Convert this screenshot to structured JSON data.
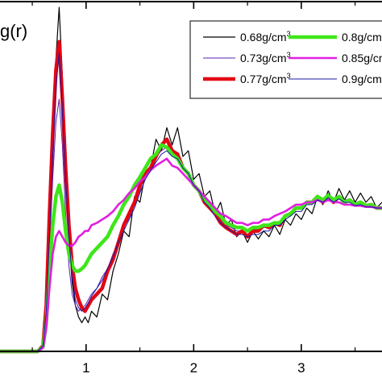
{
  "chart_data": {
    "type": "line",
    "ylabel": "g(r)",
    "xlabel": "",
    "title": "",
    "xlim": [
      0.2,
      3.75
    ],
    "ylim": [
      0,
      3.05
    ],
    "xticks": [
      {
        "value": 1,
        "label": "1"
      },
      {
        "value": 2,
        "label": "2"
      },
      {
        "value": 3,
        "label": "3"
      }
    ],
    "grid": false,
    "legend_position": "top-right",
    "series": [
      {
        "name": "0.68g/cm",
        "superscript": "3",
        "color": "#000000",
        "width": 1.2,
        "x": [
          0.2,
          0.55,
          0.6,
          0.63,
          0.66,
          0.69,
          0.72,
          0.75,
          0.78,
          0.81,
          0.84,
          0.87,
          0.9,
          0.93,
          0.96,
          0.99,
          1.02,
          1.05,
          1.1,
          1.15,
          1.2,
          1.25,
          1.3,
          1.35,
          1.4,
          1.45,
          1.5,
          1.55,
          1.6,
          1.65,
          1.7,
          1.75,
          1.8,
          1.85,
          1.9,
          1.95,
          2.0,
          2.05,
          2.1,
          2.15,
          2.2,
          2.25,
          2.3,
          2.35,
          2.4,
          2.45,
          2.5,
          2.55,
          2.6,
          2.65,
          2.7,
          2.75,
          2.8,
          2.85,
          2.9,
          2.95,
          3.0,
          3.05,
          3.1,
          3.15,
          3.2,
          3.25,
          3.3,
          3.35,
          3.4,
          3.45,
          3.5,
          3.55,
          3.6,
          3.65,
          3.7,
          3.75
        ],
        "y": [
          0.0,
          0.0,
          0.05,
          0.35,
          1.1,
          1.9,
          2.55,
          3.0,
          2.4,
          1.6,
          1.0,
          0.6,
          0.4,
          0.3,
          0.25,
          0.3,
          0.25,
          0.35,
          0.3,
          0.5,
          0.45,
          0.7,
          0.85,
          1.05,
          1.0,
          1.35,
          1.3,
          1.55,
          1.6,
          1.85,
          1.75,
          1.95,
          1.8,
          1.95,
          1.7,
          1.75,
          1.5,
          1.55,
          1.35,
          1.4,
          1.2,
          1.3,
          1.1,
          1.15,
          1.0,
          1.05,
          0.95,
          1.05,
          0.98,
          1.05,
          1.0,
          1.1,
          1.02,
          1.15,
          1.1,
          1.2,
          1.15,
          1.25,
          1.2,
          1.35,
          1.28,
          1.4,
          1.3,
          1.42,
          1.32,
          1.4,
          1.3,
          1.38,
          1.3,
          1.35,
          1.25,
          1.3
        ]
      },
      {
        "name": "0.73g/cm",
        "superscript": "3",
        "color": "#5a1fb0",
        "width": 1.0,
        "x": [
          0.2,
          0.55,
          0.6,
          0.63,
          0.66,
          0.69,
          0.72,
          0.75,
          0.78,
          0.81,
          0.84,
          0.87,
          0.9,
          0.93,
          0.96,
          0.99,
          1.02,
          1.05,
          1.1,
          1.15,
          1.2,
          1.25,
          1.3,
          1.35,
          1.4,
          1.45,
          1.5,
          1.55,
          1.6,
          1.65,
          1.7,
          1.75,
          1.8,
          1.85,
          1.9,
          1.95,
          2.0,
          2.05,
          2.1,
          2.15,
          2.2,
          2.25,
          2.3,
          2.35,
          2.4,
          2.45,
          2.5,
          2.55,
          2.6,
          2.65,
          2.7,
          2.75,
          2.8,
          2.85,
          2.9,
          2.95,
          3.0,
          3.05,
          3.1,
          3.15,
          3.2,
          3.25,
          3.3,
          3.35,
          3.4,
          3.45,
          3.5,
          3.55,
          3.6,
          3.65,
          3.7,
          3.75
        ],
        "y": [
          0.0,
          0.0,
          0.05,
          0.3,
          0.9,
          1.5,
          2.0,
          2.2,
          1.8,
          1.2,
          0.75,
          0.5,
          0.4,
          0.35,
          0.38,
          0.4,
          0.45,
          0.5,
          0.55,
          0.65,
          0.72,
          0.85,
          0.95,
          1.1,
          1.15,
          1.3,
          1.4,
          1.55,
          1.6,
          1.7,
          1.75,
          1.78,
          1.72,
          1.7,
          1.6,
          1.55,
          1.45,
          1.4,
          1.3,
          1.25,
          1.2,
          1.15,
          1.1,
          1.08,
          1.05,
          1.05,
          1.02,
          1.05,
          1.05,
          1.08,
          1.08,
          1.12,
          1.12,
          1.18,
          1.2,
          1.25,
          1.25,
          1.3,
          1.3,
          1.33,
          1.32,
          1.35,
          1.33,
          1.35,
          1.32,
          1.33,
          1.3,
          1.3,
          1.28,
          1.28,
          1.26,
          1.25
        ]
      },
      {
        "name": "0.77g/cm",
        "superscript": "3",
        "color": "#e30613",
        "width": 4.5,
        "x": [
          0.2,
          0.55,
          0.6,
          0.63,
          0.66,
          0.69,
          0.72,
          0.75,
          0.78,
          0.81,
          0.84,
          0.87,
          0.9,
          0.93,
          0.96,
          0.99,
          1.02,
          1.05,
          1.1,
          1.15,
          1.2,
          1.25,
          1.3,
          1.35,
          1.4,
          1.45,
          1.5,
          1.55,
          1.6,
          1.65,
          1.7,
          1.75,
          1.8,
          1.85,
          1.9,
          1.95,
          2.0,
          2.05,
          2.1,
          2.15,
          2.2,
          2.25,
          2.3,
          2.35,
          2.4,
          2.45,
          2.5,
          2.55,
          2.6,
          2.65,
          2.7,
          2.75,
          2.8,
          2.85,
          2.9,
          2.95,
          3.0,
          3.05,
          3.1,
          3.15,
          3.2,
          3.25,
          3.3,
          3.35,
          3.4,
          3.45,
          3.5,
          3.55,
          3.6,
          3.65,
          3.7,
          3.75
        ],
        "y": [
          0.0,
          0.0,
          0.05,
          0.4,
          1.2,
          1.9,
          2.45,
          2.7,
          2.2,
          1.6,
          1.1,
          0.75,
          0.55,
          0.45,
          0.38,
          0.35,
          0.4,
          0.45,
          0.5,
          0.55,
          0.7,
          0.8,
          0.95,
          1.1,
          1.2,
          1.3,
          1.45,
          1.55,
          1.6,
          1.7,
          1.8,
          1.85,
          1.75,
          1.72,
          1.6,
          1.55,
          1.45,
          1.4,
          1.3,
          1.25,
          1.2,
          1.12,
          1.08,
          1.05,
          1.02,
          1.05,
          1.0,
          1.05,
          1.05,
          1.1,
          1.08,
          1.12,
          1.1,
          1.18,
          1.2,
          1.25,
          1.25,
          1.3,
          1.3,
          1.35,
          1.3,
          1.36,
          1.3,
          1.35,
          1.3,
          1.32,
          1.28,
          1.3,
          1.27,
          1.28,
          1.25,
          1.25
        ]
      },
      {
        "name": "0.8g/cm",
        "superscript": "3",
        "color": "#3ee619",
        "width": 4.5,
        "x": [
          0.2,
          0.55,
          0.6,
          0.63,
          0.66,
          0.69,
          0.72,
          0.75,
          0.78,
          0.81,
          0.84,
          0.87,
          0.9,
          0.93,
          0.96,
          0.99,
          1.02,
          1.05,
          1.1,
          1.15,
          1.2,
          1.25,
          1.3,
          1.35,
          1.4,
          1.45,
          1.5,
          1.55,
          1.6,
          1.65,
          1.7,
          1.75,
          1.8,
          1.85,
          1.9,
          1.95,
          2.0,
          2.05,
          2.1,
          2.15,
          2.2,
          2.25,
          2.3,
          2.35,
          2.4,
          2.45,
          2.5,
          2.55,
          2.6,
          2.65,
          2.7,
          2.75,
          2.8,
          2.85,
          2.9,
          2.95,
          3.0,
          3.05,
          3.1,
          3.15,
          3.2,
          3.25,
          3.3,
          3.35,
          3.4,
          3.45,
          3.5,
          3.55,
          3.6,
          3.65,
          3.7,
          3.75
        ],
        "y": [
          0.0,
          0.0,
          0.04,
          0.25,
          0.7,
          1.1,
          1.35,
          1.45,
          1.3,
          1.05,
          0.85,
          0.75,
          0.7,
          0.7,
          0.72,
          0.75,
          0.8,
          0.85,
          0.9,
          0.95,
          1.0,
          1.1,
          1.18,
          1.28,
          1.35,
          1.45,
          1.52,
          1.6,
          1.68,
          1.72,
          1.8,
          1.78,
          1.72,
          1.68,
          1.6,
          1.55,
          1.45,
          1.4,
          1.32,
          1.28,
          1.22,
          1.18,
          1.12,
          1.1,
          1.08,
          1.08,
          1.05,
          1.08,
          1.08,
          1.1,
          1.1,
          1.12,
          1.12,
          1.18,
          1.2,
          1.25,
          1.25,
          1.3,
          1.3,
          1.35,
          1.32,
          1.36,
          1.32,
          1.35,
          1.3,
          1.32,
          1.28,
          1.3,
          1.27,
          1.28,
          1.25,
          1.25
        ]
      },
      {
        "name": "0.85g/cm",
        "superscript": "3",
        "color": "#e01fe0",
        "width": 2.6,
        "x": [
          0.2,
          0.55,
          0.6,
          0.63,
          0.66,
          0.69,
          0.72,
          0.75,
          0.78,
          0.81,
          0.84,
          0.87,
          0.9,
          0.93,
          0.96,
          0.99,
          1.02,
          1.05,
          1.1,
          1.15,
          1.2,
          1.25,
          1.3,
          1.35,
          1.4,
          1.45,
          1.5,
          1.55,
          1.6,
          1.65,
          1.7,
          1.75,
          1.8,
          1.85,
          1.9,
          1.95,
          2.0,
          2.05,
          2.1,
          2.15,
          2.2,
          2.25,
          2.3,
          2.35,
          2.4,
          2.45,
          2.5,
          2.55,
          2.6,
          2.65,
          2.7,
          2.75,
          2.8,
          2.85,
          2.9,
          2.95,
          3.0,
          3.05,
          3.1,
          3.15,
          3.2,
          3.25,
          3.3,
          3.35,
          3.4,
          3.45,
          3.5,
          3.55,
          3.6,
          3.65,
          3.7,
          3.75
        ],
        "y": [
          0.0,
          0.0,
          0.03,
          0.2,
          0.55,
          0.85,
          1.0,
          1.05,
          1.0,
          0.95,
          0.92,
          0.92,
          0.95,
          1.0,
          1.02,
          1.05,
          1.05,
          1.1,
          1.12,
          1.15,
          1.18,
          1.22,
          1.28,
          1.32,
          1.38,
          1.42,
          1.48,
          1.52,
          1.58,
          1.62,
          1.65,
          1.68,
          1.62,
          1.6,
          1.55,
          1.5,
          1.45,
          1.4,
          1.35,
          1.3,
          1.25,
          1.2,
          1.18,
          1.15,
          1.12,
          1.12,
          1.1,
          1.12,
          1.12,
          1.15,
          1.15,
          1.18,
          1.2,
          1.22,
          1.25,
          1.28,
          1.28,
          1.3,
          1.3,
          1.32,
          1.3,
          1.32,
          1.3,
          1.3,
          1.28,
          1.28,
          1.27,
          1.27,
          1.26,
          1.26,
          1.25,
          1.25
        ]
      },
      {
        "name": "0.9g/cm",
        "superscript": "3",
        "color": "#1a1aa6",
        "width": 1.0,
        "x": [
          0.2,
          0.55,
          0.6,
          0.63,
          0.66,
          0.69,
          0.72,
          0.75,
          0.78,
          0.81,
          0.84,
          0.87,
          0.9,
          0.93,
          0.96,
          0.99,
          1.02,
          1.05,
          1.1,
          1.15,
          1.2,
          1.25,
          1.3,
          1.35,
          1.4,
          1.45,
          1.5,
          1.55,
          1.6,
          1.65,
          1.7,
          1.75,
          1.8,
          1.85,
          1.9,
          1.95,
          2.0,
          2.05,
          2.1,
          2.15,
          2.2,
          2.25,
          2.3,
          2.35,
          2.4,
          2.45,
          2.5,
          2.55,
          2.6,
          2.65,
          2.7,
          2.75,
          2.8,
          2.85,
          2.9,
          2.95,
          3.0,
          3.05,
          3.1,
          3.15,
          3.2,
          3.25,
          3.3,
          3.35,
          3.4,
          3.45,
          3.5,
          3.55,
          3.6,
          3.65,
          3.7,
          3.75
        ],
        "y": [
          0.0,
          0.0,
          0.05,
          0.35,
          1.0,
          1.7,
          2.3,
          2.6,
          2.1,
          1.5,
          1.0,
          0.65,
          0.45,
          0.38,
          0.35,
          0.38,
          0.42,
          0.48,
          0.55,
          0.62,
          0.72,
          0.82,
          0.95,
          1.05,
          1.15,
          1.25,
          1.38,
          1.5,
          1.58,
          1.65,
          1.72,
          1.75,
          1.7,
          1.68,
          1.6,
          1.55,
          1.45,
          1.4,
          1.3,
          1.25,
          1.18,
          1.12,
          1.08,
          1.05,
          1.02,
          1.02,
          1.0,
          1.02,
          1.02,
          1.05,
          1.05,
          1.1,
          1.1,
          1.15,
          1.18,
          1.22,
          1.22,
          1.28,
          1.28,
          1.32,
          1.3,
          1.34,
          1.3,
          1.33,
          1.3,
          1.3,
          1.27,
          1.28,
          1.26,
          1.26,
          1.25,
          1.25
        ]
      }
    ]
  }
}
